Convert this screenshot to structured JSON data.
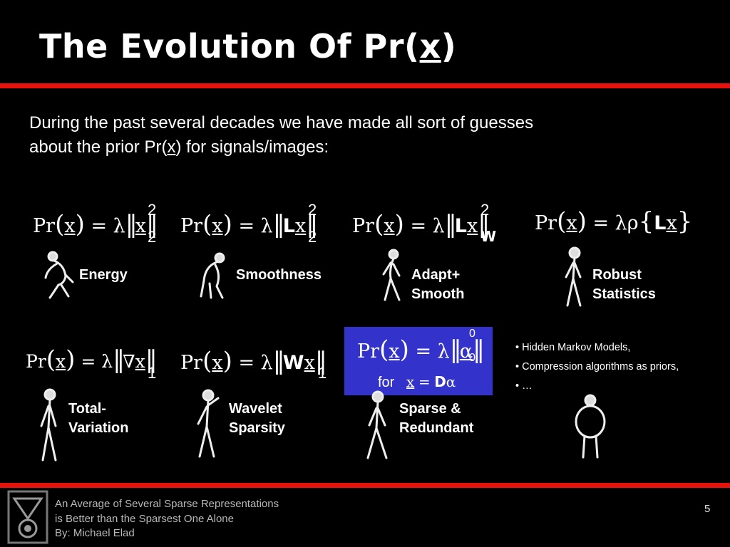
{
  "slide": {
    "title_prefix": "The Evolution Of Pr(",
    "title_var": "x",
    "title_suffix": ")",
    "intro_line1": "During the past several decades we have made all sort of guesses",
    "intro_line2_prefix": "about the prior Pr(",
    "intro_line2_var": "x",
    "intro_line2_suffix": ") for signals/images:",
    "colors": {
      "accent_bar": "#e8120c",
      "box": "#3333cc",
      "background": "#000000"
    }
  },
  "formulas": {
    "pr": "Pr",
    "x": "x",
    "eq": "=",
    "lambda": "λ",
    "rho": "ρ",
    "L": "L",
    "W": "W",
    "D": "D",
    "alpha": "α",
    "nabla": "∇",
    "two": "2",
    "one": "1",
    "zero": "0",
    "for": "for"
  },
  "labels": {
    "energy": "Energy",
    "smoothness": "Smoothness",
    "adapt_1": "Adapt+",
    "adapt_2": "Smooth",
    "robust_1": "Robust",
    "robust_2": "Statistics",
    "tv_1": "Total-",
    "tv_2": "Variation",
    "wavelet_1": "Wavelet",
    "wavelet_2": "Sparsity",
    "sparse_1": "Sparse &",
    "sparse_2": "Redundant"
  },
  "bullets": [
    "• Hidden Markov Models,",
    "• Compression algorithms as priors,",
    "• …"
  ],
  "footer": {
    "line1": "An Average of Several Sparse Representations",
    "line2": "is Better than the Sparsest One Alone",
    "line3": "By: Michael Elad",
    "page_number": "5"
  },
  "icons": [
    "technion-logo",
    "primate-figure"
  ]
}
